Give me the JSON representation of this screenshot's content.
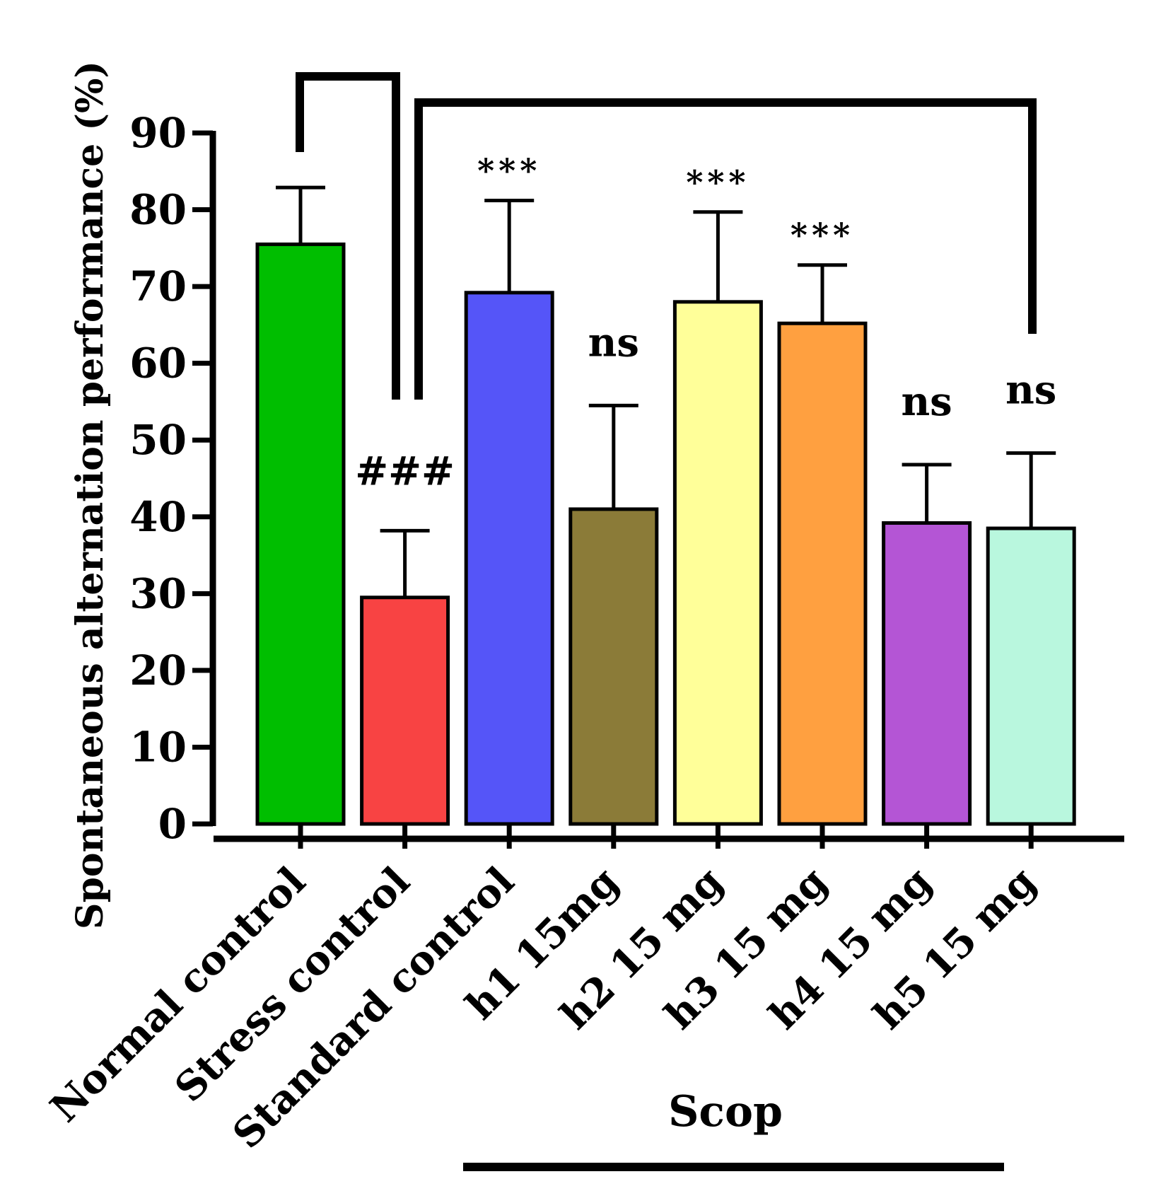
{
  "chart_data": {
    "type": "bar",
    "title": "",
    "ylabel": "Spontaneous alternation performance (%)",
    "xlabel": "",
    "ylim": [
      0,
      90
    ],
    "yticks": [
      "0",
      "10",
      "20",
      "30",
      "40",
      "50",
      "60",
      "70",
      "80",
      "90"
    ],
    "categories": [
      "Normal control",
      "Stress control",
      "Standard control",
      "h1 15mg",
      "h2 15 mg",
      "h3 15 mg",
      "h4 15 mg",
      "h5 15 mg"
    ],
    "values": [
      75.5,
      29.5,
      69.2,
      41.0,
      68.0,
      65.2,
      39.2,
      38.5
    ],
    "errors": [
      7.4,
      8.7,
      12.0,
      13.5,
      11.7,
      7.6,
      7.6,
      9.8
    ],
    "colors": [
      "#00be00",
      "#f84343",
      "#5555f8",
      "#8b7b38",
      "#ffff99",
      "#ffa040",
      "#b455d5",
      "#b9f7de"
    ],
    "annotations": [
      "",
      "###",
      "***",
      "ns",
      "***",
      "***",
      "ns",
      "ns"
    ],
    "group_label": "Scop"
  }
}
